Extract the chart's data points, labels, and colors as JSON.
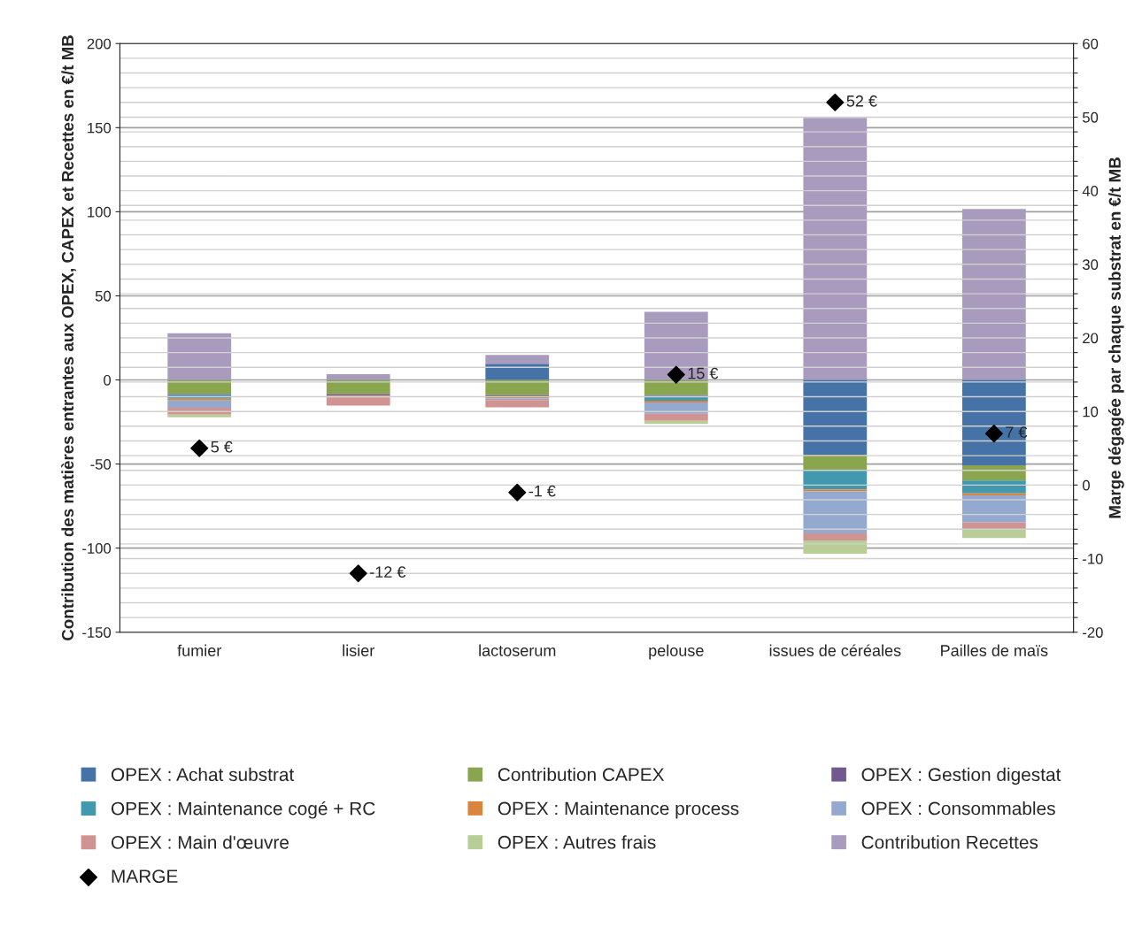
{
  "chart_data": {
    "type": "bar",
    "stacked": true,
    "categories": [
      "fumier",
      "lisier",
      "lactoserum",
      "pelouse",
      "issues de céréales",
      "Pailles de maïs"
    ],
    "ylabel": "Contribution des matières entrantes aux OPEX, CAPEX et Recettes en €/t MB",
    "y2label": "Marge dégagée par chaque substrat en €/t MB",
    "ylim": [
      -150,
      200
    ],
    "yticks": [
      -150,
      -100,
      -50,
      0,
      50,
      100,
      150,
      200
    ],
    "y2lim": [
      -20,
      60
    ],
    "y2ticks": [
      -20,
      {
        "value": -18,
        "label": null
      },
      {
        "value": -16,
        "label": null
      },
      {
        "value": -14,
        "label": null
      },
      {
        "value": -12,
        "label": null
      },
      -10,
      {
        "value": -8,
        "label": null
      },
      {
        "value": -6,
        "label": null
      },
      {
        "value": -4,
        "label": null
      },
      {
        "value": -2,
        "label": null
      },
      0,
      {
        "value": 2,
        "label": null
      },
      {
        "value": 4,
        "label": null
      },
      {
        "value": 6,
        "label": null
      },
      {
        "value": 8,
        "label": null
      },
      10,
      {
        "value": 12,
        "label": null
      },
      {
        "value": 14,
        "label": null
      },
      {
        "value": 16,
        "label": null
      },
      {
        "value": 18,
        "label": null
      },
      20,
      {
        "value": 22,
        "label": null
      },
      {
        "value": 24,
        "label": null
      },
      {
        "value": 26,
        "label": null
      },
      {
        "value": 28,
        "label": null
      },
      30,
      {
        "value": 32,
        "label": null
      },
      {
        "value": 34,
        "label": null
      },
      {
        "value": 36,
        "label": null
      },
      {
        "value": 38,
        "label": null
      },
      40,
      {
        "value": 42,
        "label": null
      },
      {
        "value": 44,
        "label": null
      },
      {
        "value": 46,
        "label": null
      },
      {
        "value": 48,
        "label": null
      },
      50,
      {
        "value": 52,
        "label": null
      },
      {
        "value": 54,
        "label": null
      },
      {
        "value": 56,
        "label": null
      },
      {
        "value": 58,
        "label": null
      },
      60
    ],
    "grid": true,
    "legend": "bottom",
    "series": [
      {
        "name": "OPEX : Achat substrat",
        "color": "#4572a7",
        "values": [
          0,
          0,
          9.6,
          0,
          -44.6,
          -50.7
        ]
      },
      {
        "name": "Contribution CAPEX",
        "color": "#89a54e",
        "values": [
          -8.4,
          -8.4,
          -9.1,
          -9.1,
          -9.1,
          -9.1
        ]
      },
      {
        "name": "OPEX : Gestion digestat",
        "color": "#71588f",
        "values": [
          -0.7,
          -1.0,
          -1.0,
          -0.5,
          0,
          0
        ]
      },
      {
        "name": "OPEX : Maintenance cogé + RC",
        "color": "#4198af",
        "values": [
          -2.1,
          0,
          0,
          -2.8,
          -11.4,
          -7.7
        ]
      },
      {
        "name": "OPEX : Maintenance process",
        "color": "#db843d",
        "values": [
          -1.0,
          -1.2,
          -0.9,
          -1.0,
          -1.2,
          -1.1
        ]
      },
      {
        "name": "OPEX : Consommables",
        "color": "#93a9cf",
        "values": [
          -4.4,
          0,
          -0.9,
          -6.7,
          -24.9,
          -16.1
        ]
      },
      {
        "name": "OPEX : Main d'œuvre",
        "color": "#d19392",
        "values": [
          -4.0,
          -4.6,
          -4.4,
          -4.2,
          -4.2,
          -4.4
        ]
      },
      {
        "name": "OPEX : Autres frais",
        "color": "#b9cd96",
        "values": [
          -1.6,
          0,
          0,
          -1.9,
          -7.9,
          -4.9
        ]
      },
      {
        "name": "Contribution Recettes",
        "color": "#a99bbd",
        "values": [
          27.7,
          3.5,
          5.3,
          40.5,
          155.8,
          101.6
        ]
      },
      {
        "name": "MARGE",
        "type": "scatter",
        "axis": "y2",
        "marker": "diamond",
        "color": "#000000",
        "values": [
          5,
          -12,
          -1,
          15,
          52,
          7
        ],
        "value_labels": [
          "5 €",
          "-12 €",
          "-1 €",
          "15 €",
          "52 €",
          "7 €"
        ]
      }
    ]
  }
}
